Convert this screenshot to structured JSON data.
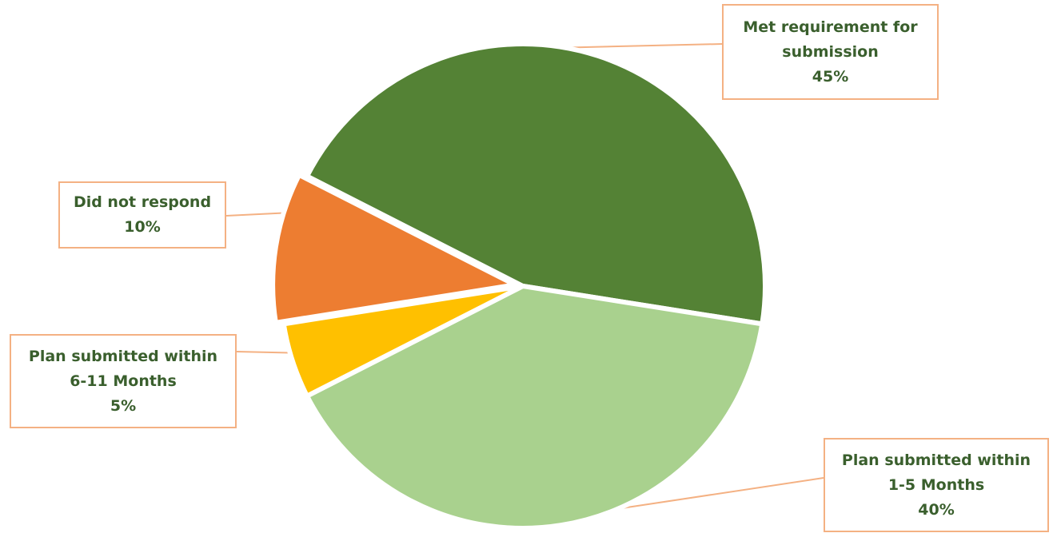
{
  "chart_data": {
    "type": "pie",
    "title": "",
    "slices": [
      {
        "label_lines": [
          "Met requirement for",
          "submission"
        ],
        "percent_label": "45%",
        "value": 45,
        "color": "#548235"
      },
      {
        "label_lines": [
          "Plan submitted within",
          "1-5 Months"
        ],
        "percent_label": "40%",
        "value": 40,
        "color": "#a9d18e"
      },
      {
        "label_lines": [
          "Plan submitted within",
          "6-11 Months"
        ],
        "percent_label": "5%",
        "value": 5,
        "color": "#ffc000"
      },
      {
        "label_lines": [
          "Did not respond"
        ],
        "percent_label": "10%",
        "value": 10,
        "color": "#ed7d31"
      }
    ],
    "label_color": "#3a5f2d",
    "leader_color": "#f4b183",
    "legend": "none"
  }
}
